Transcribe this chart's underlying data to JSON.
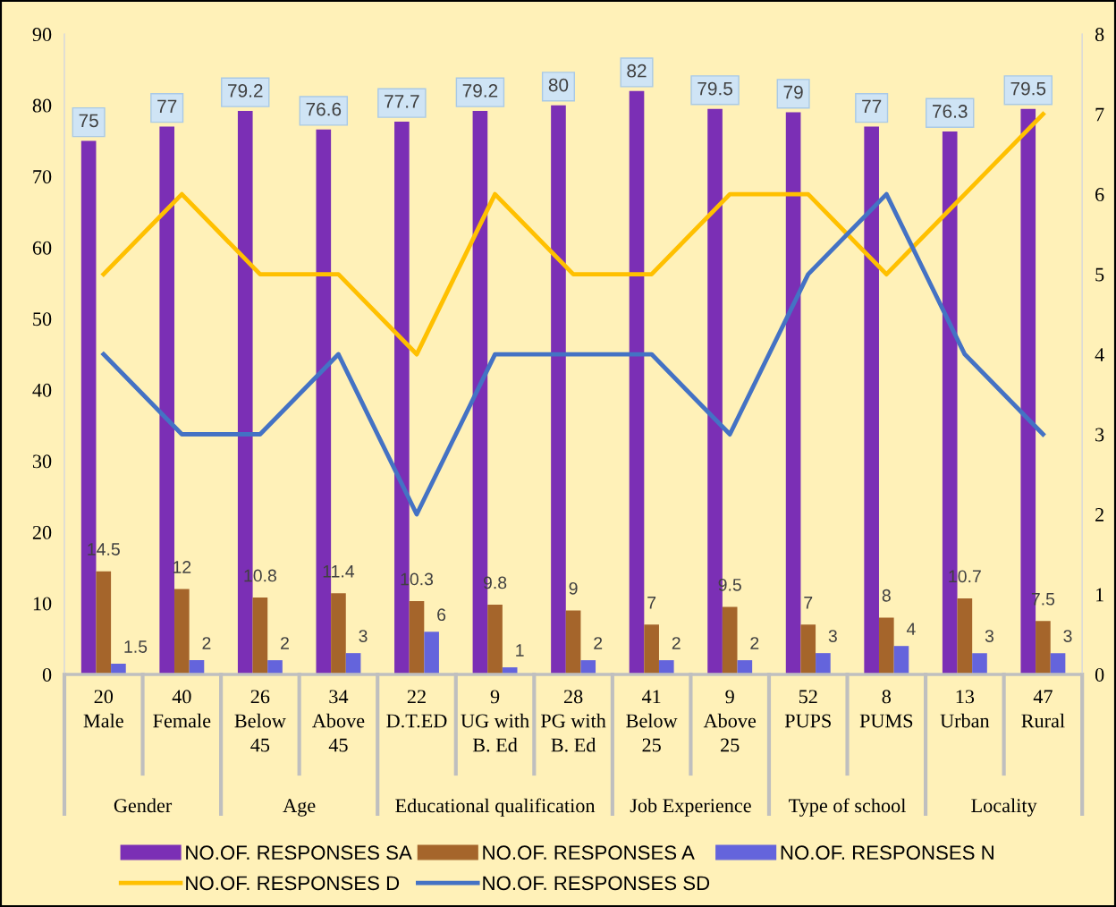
{
  "chart_data": {
    "type": "bar",
    "categories": [
      "20\nMale",
      "40\nFemale",
      "26\nBelow\n45",
      "34\nAbove\n45",
      "22\nD.T.ED",
      "9\nUG with\nB. Ed",
      "28\nPG with\nB. Ed",
      "41\nBelow\n25",
      "9\nAbove\n25",
      "52\nPUPS",
      "8\nPUMS",
      "13\nUrban",
      "47\nRural"
    ],
    "series": [
      {
        "name": "NO.OF. RESPONSES SA",
        "color": "#7b2fb5",
        "values": [
          75,
          77,
          79.2,
          76.6,
          77.7,
          79.2,
          80,
          82,
          79.5,
          79,
          77,
          76.3,
          79.5
        ],
        "value_labels": [
          "75",
          "77",
          "79.2",
          "76.6",
          "77.7",
          "79.2",
          "80",
          "82",
          "79.5",
          "79",
          "77",
          "76.3",
          "79.5"
        ]
      },
      {
        "name": "NO.OF. RESPONSES A",
        "color": "#a5652b",
        "values": [
          14.5,
          12,
          10.8,
          11.4,
          10.3,
          9.8,
          9,
          7,
          9.5,
          7,
          8,
          10.7,
          7.5
        ],
        "value_labels": [
          "14.5",
          "12",
          "10.8",
          "11.4",
          "10.3",
          "9.8",
          "9",
          "7",
          "9.5",
          "7",
          "8",
          "10.7",
          "7.5"
        ]
      },
      {
        "name": "NO.OF. RESPONSES N",
        "color": "#6464dc",
        "values": [
          1.5,
          2,
          2,
          3,
          6,
          1,
          2,
          2,
          2,
          3,
          4,
          3,
          3
        ],
        "value_labels": [
          "1.5",
          "2",
          "2",
          "3",
          "6",
          "1",
          "2",
          "2",
          "2",
          "3",
          "4",
          "3",
          "3"
        ]
      },
      {
        "name": "NO.OF. RESPONSES D",
        "type": "line",
        "axis": "y2",
        "color": "#ffc000",
        "values": [
          5,
          6,
          5,
          5,
          4,
          6,
          5,
          5,
          6,
          6,
          5,
          6,
          7
        ]
      },
      {
        "name": "NO.OF. RESPONSES SD",
        "type": "line",
        "axis": "y2",
        "color": "#4472c4",
        "values": [
          4,
          3,
          3,
          4,
          2,
          4,
          4,
          4,
          3,
          5,
          6,
          4,
          3
        ]
      }
    ],
    "ylim": [
      0,
      90
    ],
    "yticks": [
      0,
      10,
      20,
      30,
      40,
      50,
      60,
      70,
      80,
      90
    ],
    "y2lim": [
      0,
      8
    ],
    "y2ticks": [
      0,
      1,
      2,
      3,
      4,
      5,
      6,
      7,
      8
    ],
    "grid": false,
    "legend": "bottom",
    "marker": "none",
    "line_style": "solid",
    "annotations": [
      "Gender",
      "Age",
      "Educational qualification",
      "Job Experience",
      "Type of school",
      "Locality"
    ]
  }
}
